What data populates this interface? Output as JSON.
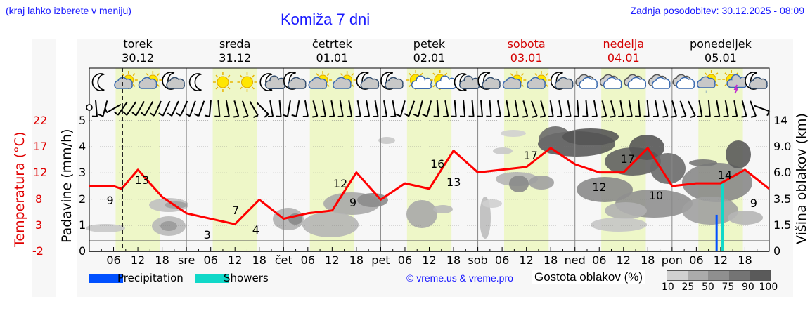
{
  "header": {
    "location_hint": "(kraj lahko izberete v meniju)",
    "title": "Komiža 7 dni",
    "last_update": "Zadnja posodobitev: 30.12.2025 - 08:09"
  },
  "days": [
    {
      "name": "torek",
      "date": "30.12",
      "weekend": false
    },
    {
      "name": "sreda",
      "date": "31.12",
      "weekend": false
    },
    {
      "name": "četrtek",
      "date": "01.01",
      "weekend": false
    },
    {
      "name": "petek",
      "date": "02.01",
      "weekend": false
    },
    {
      "name": "sobota",
      "date": "03.01",
      "weekend": true
    },
    {
      "name": "nedelja",
      "date": "04.01",
      "weekend": true
    },
    {
      "name": "ponedeljek",
      "date": "05.01",
      "weekend": false
    }
  ],
  "x_ticks": [
    "06",
    "12",
    "18",
    "sre",
    "06",
    "12",
    "18",
    "čet",
    "06",
    "12",
    "18",
    "pet",
    "06",
    "12",
    "18",
    "sob",
    "06",
    "12",
    "18",
    "ned",
    "06",
    "12",
    "18",
    "pon",
    "06",
    "12",
    "18"
  ],
  "axes": {
    "temp_label": "Temperatura (°C)",
    "temp_ticks": [
      "22",
      "17",
      "12",
      "8",
      "3",
      "-2"
    ],
    "precip_label": "Padavine (mm/h)",
    "precip_ticks": [
      "5",
      "4",
      "3",
      "2",
      "1",
      "0"
    ],
    "cloud_label": "Višina oblakov (km)",
    "cloud_ticks": [
      "14",
      "9.0",
      "6.0",
      "3.5",
      "1.5",
      "0"
    ]
  },
  "legend": {
    "precipitation": "Precipitation",
    "showers": "Showers",
    "copyright": "© vreme.us & vreme.pro",
    "cloud_density": "Gostota oblakov (%)",
    "density_scale": [
      "10",
      "25",
      "50",
      "75",
      "90",
      "100"
    ]
  },
  "colors": {
    "temperature": "#ff0000",
    "precipitation": "#0050ff",
    "showers": "#10d8c8",
    "daylight": "#eef7c8",
    "title": "#1a1aff",
    "weekend": "#d40000"
  },
  "icons": [
    "moon",
    "sun-cloud",
    "sun-cloud",
    "moon-cloud",
    "moon",
    "sun",
    "sun",
    "moon-small-cloud",
    "moon-cloud",
    "sun-cloud",
    "sun-cloud",
    "moon-cloud",
    "moon-cloud",
    "sun-small-cloud",
    "sun-small-cloud",
    "moon-small-cloud",
    "moon-cloud",
    "sun-cloud",
    "sun-cloud",
    "moon-cloud",
    "overcast",
    "overcast",
    "overcast",
    "overcast",
    "overcast",
    "sun-rain-cloud",
    "sun-thunder-cloud",
    "moon-cloud"
  ],
  "chart_data": {
    "type": "line",
    "title": "Komiža 7 dni",
    "xlabel": "",
    "ylabel": "Padavine (mm/h)",
    "ylabel_left": "Temperatura (°C)",
    "ylabel_right": "Višina oblakov (km)",
    "ylim_precip": [
      0,
      5
    ],
    "ylim_temp": [
      -2,
      22
    ],
    "grid": true,
    "current_time_marker": "30.12 08:00",
    "series": [
      {
        "name": "Temperatura",
        "unit": "°C",
        "points_hours": [
          0,
          6,
          8,
          12,
          18,
          24,
          36,
          42,
          48,
          54,
          60,
          66,
          72,
          78,
          84,
          90,
          96,
          102,
          108,
          114,
          120,
          126,
          132,
          138,
          144,
          150,
          156,
          162,
          168
        ],
        "values": [
          10,
          10,
          9.5,
          13,
          8,
          5,
          3,
          7.5,
          4,
          5,
          5.5,
          12.5,
          7.5,
          10.5,
          9.5,
          16.5,
          12.5,
          13,
          13.5,
          17,
          14,
          12.5,
          12.5,
          17,
          10,
          10.5,
          10.5,
          13,
          9.5
        ]
      },
      {
        "name": "Precipitation",
        "unit": "mm/h",
        "x": "05.01 11:00",
        "value": 1.4
      },
      {
        "name": "Showers",
        "unit": "mm/h",
        "x": "05.01 12:30",
        "value": 2.6
      }
    ],
    "annotations": [
      {
        "label": "9",
        "day": "30.12",
        "hour": 6
      },
      {
        "label": "13",
        "day": "30.12",
        "hour": 13
      },
      {
        "label": "3",
        "day": "31.12",
        "hour": 6
      },
      {
        "label": "7",
        "day": "31.12",
        "hour": 13
      },
      {
        "label": "4",
        "day": "31.12",
        "hour": 18
      },
      {
        "label": "12",
        "day": "01.01",
        "hour": 14
      },
      {
        "label": "9",
        "day": "01.01",
        "hour": 18
      },
      {
        "label": "16",
        "day": "02.01",
        "hour": 14
      },
      {
        "label": "13",
        "day": "02.01",
        "hour": 18
      },
      {
        "label": "17",
        "day": "03.01",
        "hour": 13
      },
      {
        "label": "12",
        "day": "04.01",
        "hour": 6
      },
      {
        "label": "17",
        "day": "04.01",
        "hour": 13
      },
      {
        "label": "10",
        "day": "04.01",
        "hour": 20
      },
      {
        "label": "14",
        "day": "05.01",
        "hour": 13
      },
      {
        "label": "9",
        "day": "05.01",
        "hour": 21
      }
    ],
    "cloud_density_legend": [
      "10",
      "25",
      "50",
      "75",
      "90",
      "100"
    ]
  }
}
